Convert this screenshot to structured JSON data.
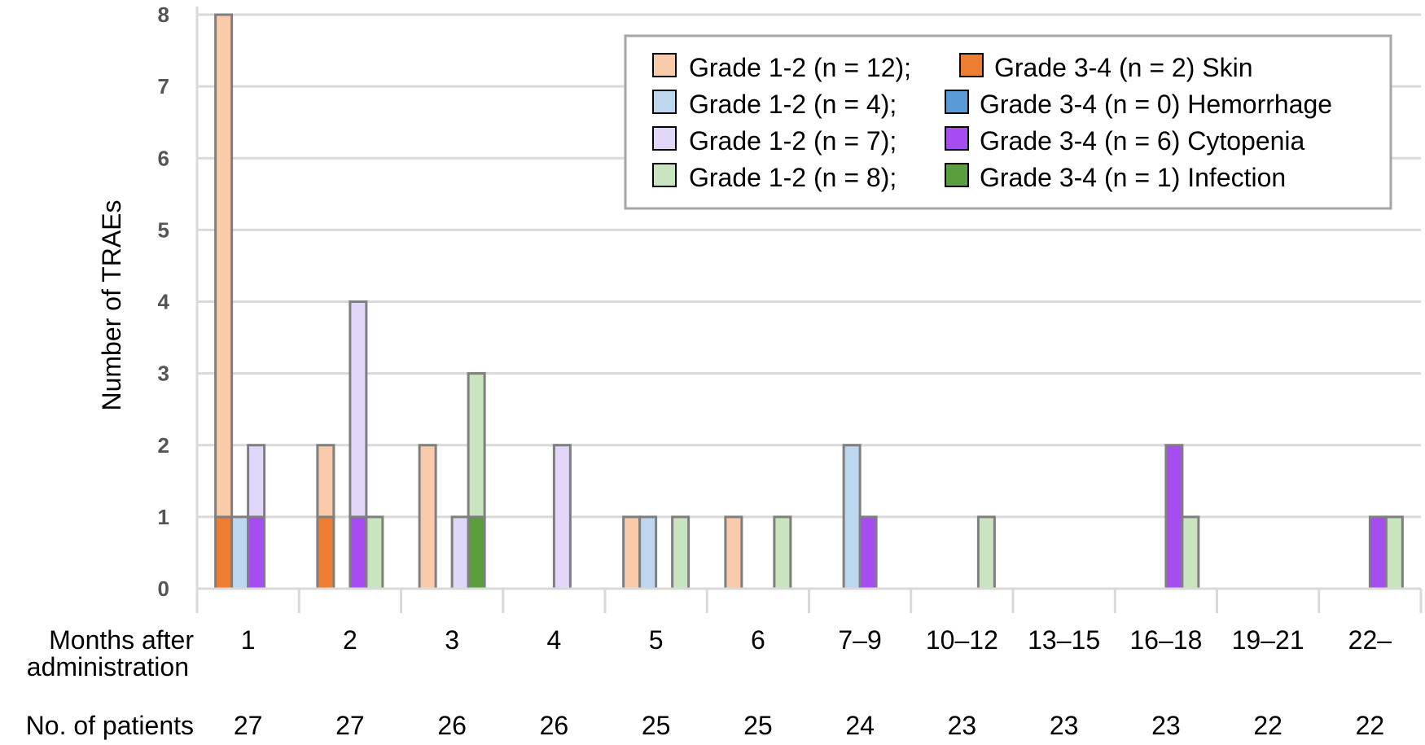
{
  "chart_data": {
    "type": "bar",
    "ylabel": "Number of TRAEs",
    "ylim": [
      0,
      8
    ],
    "yticks": [
      0,
      1,
      2,
      3,
      4,
      5,
      6,
      7,
      8
    ],
    "grid": true,
    "legend_position": "top-right",
    "x_row_label_lines": [
      "Months after",
      "administration"
    ],
    "patients_row_label": "No. of patients",
    "categories": [
      "1",
      "2",
      "3",
      "4",
      "5",
      "6",
      "7–9",
      "10–12",
      "13–15",
      "16–18",
      "19–21",
      "22–"
    ],
    "patients": [
      "27",
      "27",
      "26",
      "26",
      "25",
      "25",
      "24",
      "23",
      "23",
      "23",
      "22",
      "22"
    ],
    "series": [
      {
        "type": "Skin",
        "low_label": "Grade 1-2 (n = 12);",
        "high_label": "Grade 3-4 (n = 2)",
        "low_color": "#F9CBAB",
        "high_color": "#ED7D31",
        "totals": [
          8,
          2,
          2,
          0,
          1,
          1,
          0,
          0,
          0,
          0,
          0,
          0
        ],
        "high": [
          1,
          1,
          0,
          0,
          0,
          0,
          0,
          0,
          0,
          0,
          0,
          0
        ]
      },
      {
        "type": "Hemorrhage",
        "low_label": "Grade 1-2 (n = 4);",
        "high_label": "Grade 3-4 (n = 0)",
        "low_color": "#BDD7EE",
        "high_color": "#5B9BD5",
        "totals": [
          1,
          0,
          0,
          0,
          1,
          0,
          2,
          0,
          0,
          0,
          0,
          0
        ],
        "high": [
          0,
          0,
          0,
          0,
          0,
          0,
          0,
          0,
          0,
          0,
          0,
          0
        ]
      },
      {
        "type": "Cytopenia",
        "low_label": "Grade 1-2 (n = 7);",
        "high_label": "Grade 3-4 (n = 6)",
        "low_color": "#E2D6F9",
        "high_color": "#A64DF2",
        "totals": [
          2,
          4,
          1,
          2,
          0,
          0,
          1,
          0,
          0,
          2,
          0,
          1
        ],
        "high": [
          1,
          1,
          0,
          0,
          0,
          0,
          1,
          0,
          0,
          2,
          0,
          1
        ]
      },
      {
        "type": "Infection",
        "low_label": "Grade 1-2 (n = 8);",
        "high_label": "Grade 3-4 (n = 1)",
        "low_color": "#C9E5BF",
        "high_color": "#5B9E3D",
        "totals": [
          0,
          1,
          3,
          0,
          1,
          1,
          0,
          1,
          0,
          1,
          0,
          1
        ],
        "high": [
          0,
          0,
          1,
          0,
          0,
          0,
          0,
          0,
          0,
          0,
          0,
          0
        ]
      }
    ]
  }
}
